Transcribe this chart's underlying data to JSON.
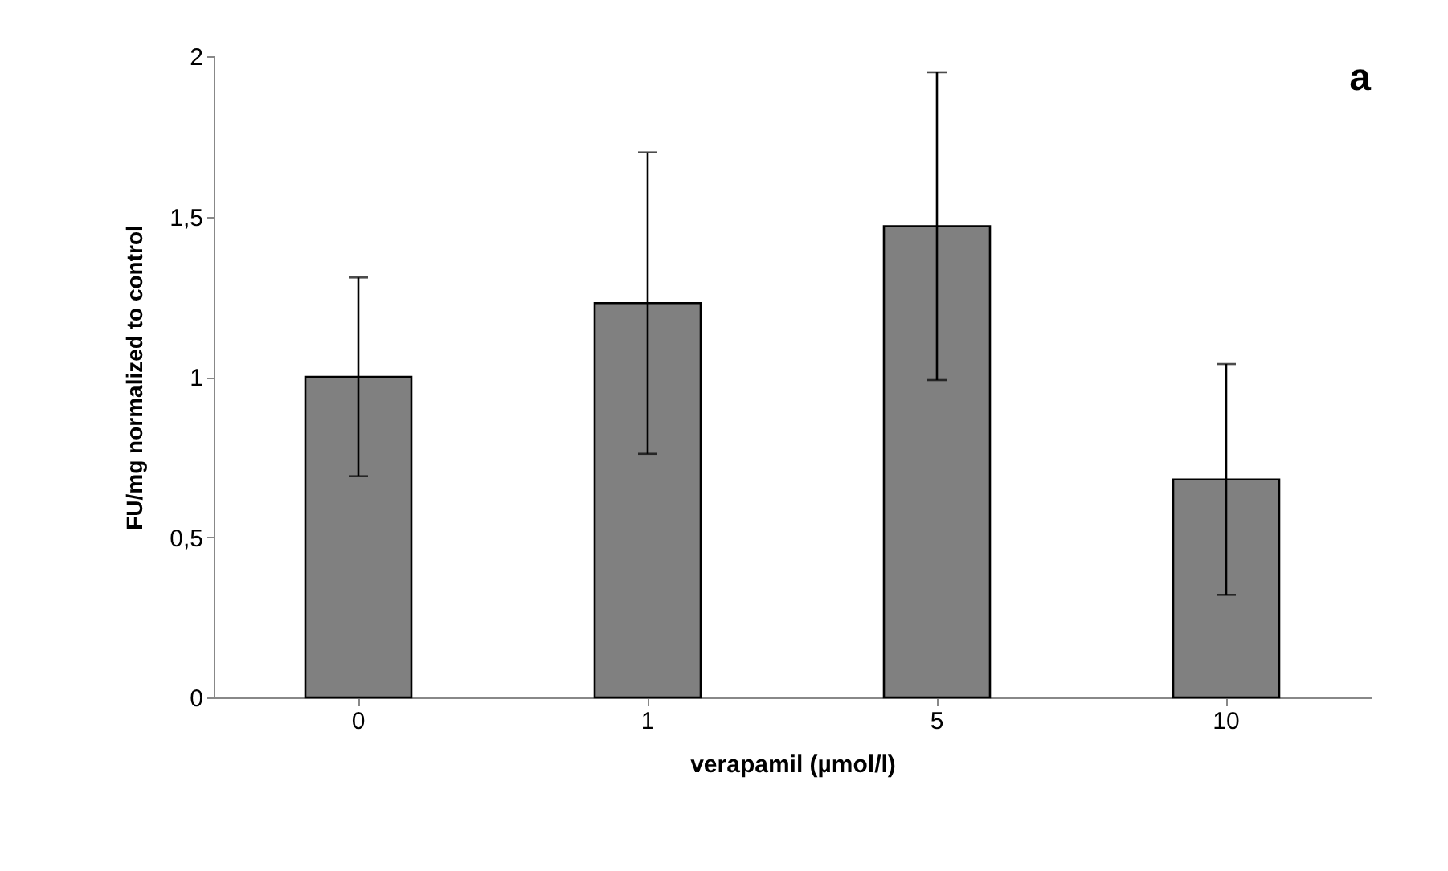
{
  "chart_data": {
    "type": "bar",
    "xlabel": "verapamil (µmol/l)",
    "ylabel": "FU/mg normalized to control",
    "categories": [
      "0",
      "1",
      "5",
      "10"
    ],
    "values": [
      1.0,
      1.23,
      1.47,
      0.68
    ],
    "errors": [
      0.31,
      0.47,
      0.48,
      0.36
    ],
    "color": "#808080",
    "ylim": [
      0,
      2
    ],
    "yticks": [
      0,
      {
        "value": 0.5,
        "label": "0,5"
      },
      1,
      {
        "value": 1.5,
        "label": "1,5"
      },
      2
    ],
    "grid": false,
    "annotations": [
      "a"
    ]
  }
}
